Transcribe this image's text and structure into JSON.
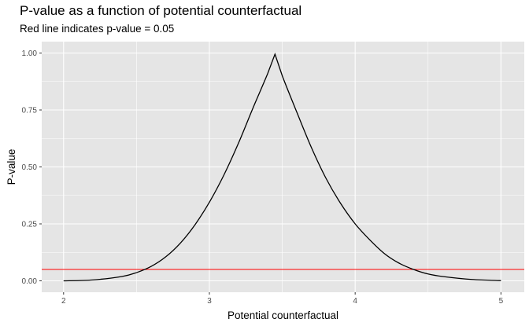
{
  "chart_data": {
    "type": "line",
    "title": "P-value as a function of potential counterfactual",
    "subtitle": "Red line indicates p-value = 0.05",
    "xlabel": "Potential counterfactual",
    "ylabel": "P-value",
    "xlim": [
      1.85,
      5.16
    ],
    "ylim": [
      -0.05,
      1.05
    ],
    "x_ticks": [
      2,
      3,
      4,
      5
    ],
    "x_tick_labels": [
      "2",
      "3",
      "4",
      "5"
    ],
    "y_ticks": [
      0,
      0.25,
      0.5,
      0.75,
      1.0
    ],
    "y_tick_labels": [
      "0.00",
      "0.25",
      "0.50",
      "0.75",
      "1.00"
    ],
    "grid": true,
    "background": "#e5e5e5",
    "grid_color": "#ffffff",
    "series": [
      {
        "color": "#000000",
        "x": [
          2.0,
          2.2,
          2.4,
          2.5,
          2.6,
          2.7,
          2.8,
          2.9,
          3.0,
          3.1,
          3.2,
          3.3,
          3.4,
          3.45,
          3.5,
          3.6,
          3.7,
          3.8,
          3.9,
          4.0,
          4.1,
          4.2,
          4.3,
          4.4,
          4.5,
          4.6,
          4.8,
          5.0
        ],
        "y": [
          0.0,
          0.004,
          0.019,
          0.036,
          0.063,
          0.105,
          0.165,
          0.245,
          0.345,
          0.465,
          0.605,
          0.76,
          0.91,
          0.995,
          0.9,
          0.74,
          0.585,
          0.45,
          0.34,
          0.25,
          0.18,
          0.12,
          0.078,
          0.05,
          0.03,
          0.019,
          0.006,
          0.001
        ]
      }
    ],
    "hline": {
      "y": 0.05,
      "color": "#ff0000"
    }
  }
}
